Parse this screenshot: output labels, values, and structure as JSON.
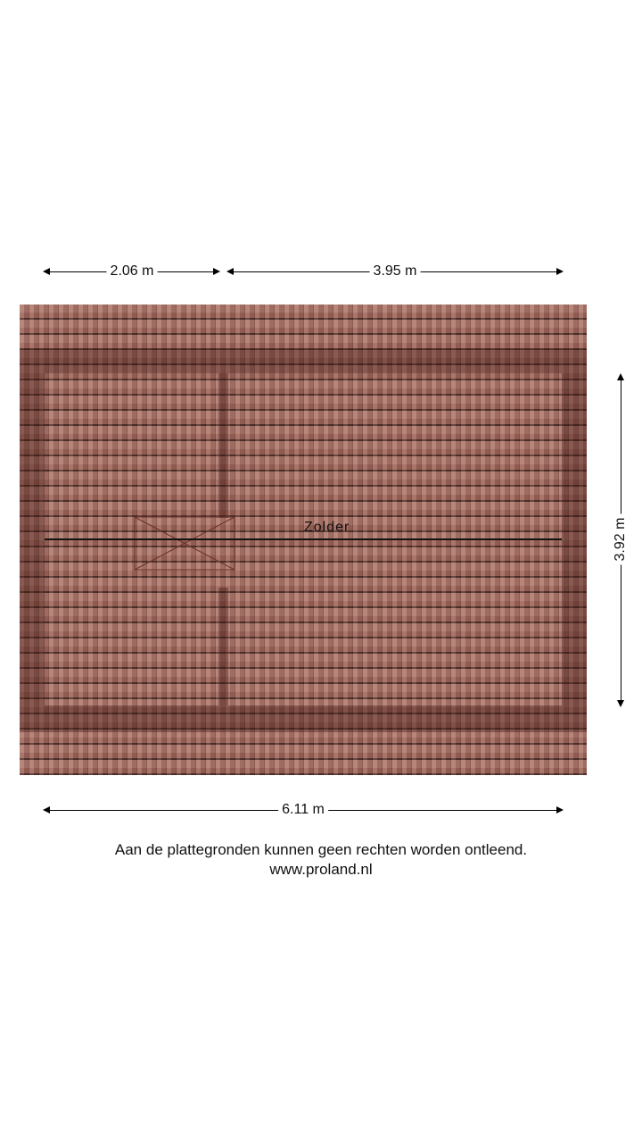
{
  "plan": {
    "room_label": "Zolder",
    "dimensions": {
      "top_left": "2.06 m",
      "top_right": "3.95 m",
      "bottom": "6.11 m",
      "right": "3.92 m"
    },
    "colors": {
      "roof_tile": "#a96c60",
      "wall": "#6a3a32"
    }
  },
  "footer": {
    "disclaimer": "Aan de plattegronden kunnen geen rechten worden ontleend.",
    "website": "www.proland.nl"
  }
}
